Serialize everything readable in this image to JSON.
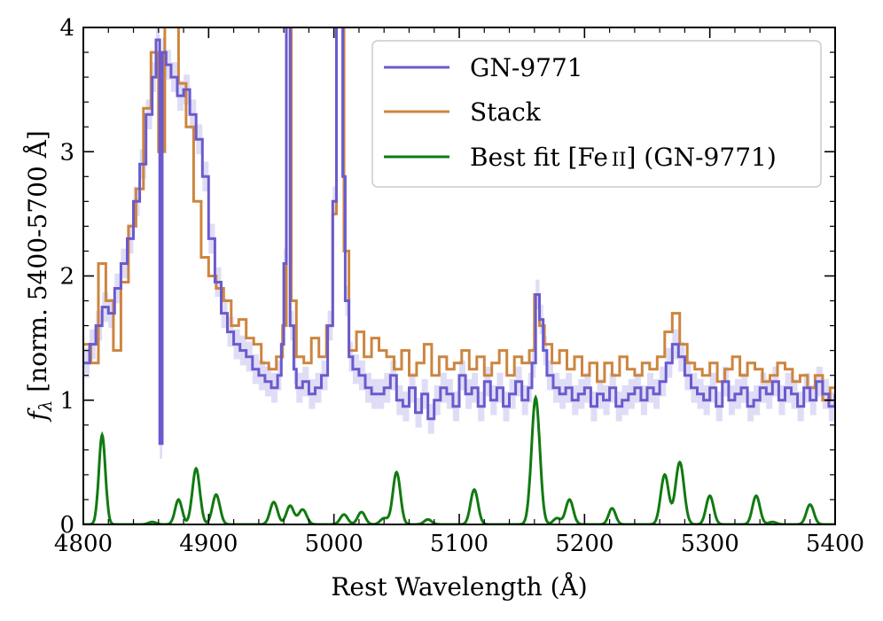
{
  "chart_data": {
    "type": "line",
    "title": "",
    "xlabel": "Rest Wavelength (Å)",
    "ylabel": "f_λ [norm. 5400-5700 Å]",
    "ylabel_main": "f",
    "ylabel_sub": "λ",
    "ylabel_rest": " [norm. 5400-5700 Å]",
    "xlim": [
      4800,
      5400
    ],
    "ylim": [
      0,
      4
    ],
    "xticks": [
      4800,
      4900,
      5000,
      5100,
      5200,
      5300,
      5400
    ],
    "yticks": [
      0,
      1,
      2,
      3,
      4
    ],
    "legend_position": "top-right",
    "series": [
      {
        "name": "GN-9771",
        "color": "#6a5acd",
        "band_color": "#c9c6f0",
        "style": "step",
        "x": [
          4800,
          4805,
          4810,
          4815,
          4820,
          4825,
          4830,
          4835,
          4840,
          4845,
          4850,
          4855,
          4858,
          4861,
          4863,
          4866,
          4870,
          4875,
          4880,
          4885,
          4890,
          4895,
          4900,
          4905,
          4910,
          4915,
          4920,
          4925,
          4930,
          4935,
          4940,
          4945,
          4950,
          4955,
          4958,
          4960,
          4962,
          4965,
          4968,
          4970,
          4975,
          4980,
          4985,
          4990,
          4995,
          4999,
          5002,
          5005,
          5007,
          5009,
          5012,
          5015,
          5020,
          5025,
          5030,
          5035,
          5040,
          5045,
          5050,
          5055,
          5060,
          5065,
          5070,
          5075,
          5080,
          5085,
          5090,
          5095,
          5100,
          5105,
          5110,
          5115,
          5120,
          5125,
          5130,
          5135,
          5140,
          5145,
          5150,
          5155,
          5158,
          5161,
          5164,
          5167,
          5170,
          5175,
          5180,
          5185,
          5190,
          5195,
          5200,
          5205,
          5210,
          5215,
          5220,
          5225,
          5230,
          5235,
          5240,
          5245,
          5250,
          5255,
          5260,
          5265,
          5270,
          5275,
          5280,
          5285,
          5290,
          5295,
          5300,
          5305,
          5310,
          5315,
          5320,
          5325,
          5330,
          5335,
          5340,
          5345,
          5350,
          5355,
          5360,
          5365,
          5370,
          5375,
          5380,
          5385,
          5390,
          5395,
          5400
        ],
        "y": [
          1.3,
          1.45,
          1.6,
          1.75,
          1.7,
          1.9,
          2.1,
          2.3,
          2.6,
          2.9,
          3.3,
          3.6,
          3.9,
          0.65,
          3.8,
          3.7,
          3.6,
          3.45,
          3.5,
          3.3,
          3.1,
          2.8,
          2.3,
          1.95,
          1.7,
          1.55,
          1.45,
          1.4,
          1.35,
          1.25,
          1.2,
          1.15,
          1.1,
          1.2,
          1.45,
          2.1,
          4.2,
          1.6,
          1.25,
          1.1,
          1.15,
          1.05,
          1.1,
          1.2,
          1.6,
          2.6,
          4.2,
          4.2,
          2.8,
          1.8,
          1.35,
          1.25,
          1.2,
          1.1,
          1.05,
          1.05,
          1.1,
          1.2,
          1.0,
          0.95,
          1.1,
          0.9,
          1.05,
          0.85,
          1.0,
          1.1,
          1.05,
          0.95,
          1.2,
          1.05,
          1.1,
          0.95,
          1.15,
          1.0,
          1.1,
          0.95,
          1.05,
          1.15,
          1.0,
          1.1,
          1.3,
          1.85,
          1.65,
          1.4,
          1.2,
          1.1,
          1.05,
          1.1,
          1.0,
          1.05,
          1.1,
          0.95,
          1.05,
          1.0,
          1.1,
          0.95,
          1.0,
          1.05,
          1.1,
          1.0,
          1.1,
          1.05,
          1.15,
          1.3,
          1.45,
          1.35,
          1.2,
          1.1,
          1.05,
          1.0,
          1.1,
          0.95,
          1.15,
          1.0,
          1.05,
          1.1,
          0.95,
          1.0,
          1.1,
          1.05,
          1.15,
          1.0,
          1.1,
          1.05,
          0.95,
          1.1,
          1.0,
          1.15,
          1.05,
          0.95,
          1.05
        ]
      },
      {
        "name": "Stack",
        "color": "#cd853f",
        "style": "step",
        "x": [
          4800,
          4806,
          4812,
          4818,
          4824,
          4830,
          4836,
          4842,
          4848,
          4854,
          4860,
          4865,
          4870,
          4876,
          4882,
          4888,
          4894,
          4900,
          4906,
          4912,
          4918,
          4924,
          4930,
          4936,
          4942,
          4948,
          4954,
          4959,
          4962,
          4966,
          4970,
          4976,
          4982,
          4988,
          4994,
          4999,
          5002,
          5005,
          5008,
          5012,
          5018,
          5024,
          5030,
          5036,
          5042,
          5048,
          5054,
          5060,
          5066,
          5072,
          5078,
          5084,
          5090,
          5096,
          5102,
          5108,
          5114,
          5120,
          5126,
          5132,
          5138,
          5144,
          5150,
          5156,
          5160,
          5164,
          5168,
          5174,
          5180,
          5186,
          5192,
          5198,
          5204,
          5210,
          5216,
          5222,
          5228,
          5234,
          5240,
          5246,
          5252,
          5258,
          5264,
          5270,
          5276,
          5282,
          5288,
          5294,
          5300,
          5306,
          5312,
          5318,
          5324,
          5330,
          5336,
          5342,
          5348,
          5354,
          5360,
          5366,
          5372,
          5378,
          5384,
          5390,
          5396
        ],
        "y": [
          1.45,
          1.3,
          2.1,
          1.8,
          1.4,
          1.95,
          2.4,
          2.7,
          3.35,
          3.8,
          3.0,
          4.2,
          4.2,
          3.55,
          3.2,
          2.6,
          2.15,
          2.0,
          1.9,
          1.8,
          1.6,
          1.65,
          1.5,
          1.45,
          1.3,
          1.25,
          1.35,
          1.6,
          4.2,
          1.8,
          1.35,
          1.3,
          1.5,
          1.35,
          1.6,
          2.5,
          4.2,
          4.2,
          2.2,
          1.4,
          1.55,
          1.35,
          1.5,
          1.4,
          1.35,
          1.25,
          1.4,
          1.2,
          1.3,
          1.45,
          1.2,
          1.35,
          1.25,
          1.3,
          1.4,
          1.25,
          1.35,
          1.2,
          1.3,
          1.4,
          1.2,
          1.35,
          1.3,
          1.4,
          1.85,
          1.6,
          1.45,
          1.3,
          1.4,
          1.25,
          1.35,
          1.2,
          1.3,
          1.15,
          1.3,
          1.2,
          1.35,
          1.25,
          1.2,
          1.3,
          1.25,
          1.35,
          1.55,
          1.7,
          1.45,
          1.3,
          1.25,
          1.2,
          1.3,
          1.15,
          1.25,
          1.35,
          1.2,
          1.3,
          1.25,
          1.15,
          1.2,
          1.3,
          1.25,
          1.15,
          1.2,
          1.1,
          1.2,
          1.0,
          1.1
        ]
      },
      {
        "name": "Best fit [Fe ii] (GN-9771)",
        "legend_prefix": "Best fit [Fe",
        "legend_roman": "II",
        "legend_suffix": "] (GN-9771)",
        "color": "#117a11",
        "style": "line",
        "peaks": [
          {
            "center": 4815,
            "amp": 0.72,
            "sigma": 2.6
          },
          {
            "center": 4855,
            "amp": 0.02,
            "sigma": 3.0
          },
          {
            "center": 4876,
            "amp": 0.2,
            "sigma": 2.8
          },
          {
            "center": 4890,
            "amp": 0.45,
            "sigma": 3.0
          },
          {
            "center": 4906,
            "amp": 0.24,
            "sigma": 3.0
          },
          {
            "center": 4952,
            "amp": 0.18,
            "sigma": 3.0
          },
          {
            "center": 4965,
            "amp": 0.15,
            "sigma": 3.0
          },
          {
            "center": 4975,
            "amp": 0.12,
            "sigma": 3.2
          },
          {
            "center": 5008,
            "amp": 0.08,
            "sigma": 3.0
          },
          {
            "center": 5022,
            "amp": 0.1,
            "sigma": 3.0
          },
          {
            "center": 5040,
            "amp": 0.05,
            "sigma": 3.0
          },
          {
            "center": 5050,
            "amp": 0.42,
            "sigma": 3.0
          },
          {
            "center": 5075,
            "amp": 0.04,
            "sigma": 3.0
          },
          {
            "center": 5112,
            "amp": 0.28,
            "sigma": 3.0
          },
          {
            "center": 5161,
            "amp": 1.02,
            "sigma": 3.3
          },
          {
            "center": 5178,
            "amp": 0.05,
            "sigma": 3.0
          },
          {
            "center": 5188,
            "amp": 0.2,
            "sigma": 3.0
          },
          {
            "center": 5222,
            "amp": 0.13,
            "sigma": 2.8
          },
          {
            "center": 5264,
            "amp": 0.4,
            "sigma": 3.2
          },
          {
            "center": 5276,
            "amp": 0.5,
            "sigma": 3.4
          },
          {
            "center": 5300,
            "amp": 0.23,
            "sigma": 3.0
          },
          {
            "center": 5337,
            "amp": 0.23,
            "sigma": 3.0
          },
          {
            "center": 5350,
            "amp": 0.02,
            "sigma": 3.0
          },
          {
            "center": 5380,
            "amp": 0.16,
            "sigma": 3.0
          }
        ]
      }
    ]
  }
}
